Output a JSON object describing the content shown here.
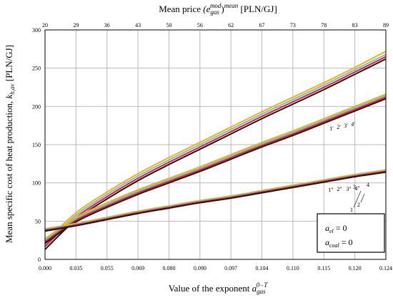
{
  "chart_data": {
    "type": "line",
    "top_axis": {
      "title": "Mean price (e_gas^mod)^mean [PLN/GJ]",
      "title_main": "Mean price ",
      "title_var": "(e",
      "title_sub": "gas",
      "title_sup": "mod",
      "title_var2": ")",
      "title_sup2": "mean",
      "title_unit": " [PLN/GJ]",
      "ticks": [
        "20",
        "29",
        "36",
        "43",
        "50",
        "56",
        "62",
        "67",
        "73",
        "78",
        "83",
        "89"
      ]
    },
    "x_axis": {
      "title_main": "Value of the exponent ",
      "title_var": "a",
      "title_sub": "gas",
      "title_sup": "0−T",
      "ticks": [
        "0.000",
        "0.035",
        "0.055",
        "0.069",
        "0.080",
        "0.090",
        "0.097",
        "0.104",
        "0.110",
        "0.115",
        "0.120",
        "0.124"
      ]
    },
    "y_axis": {
      "title_main": "Mean specific cost of heat production, ",
      "title_var": "k",
      "title_sub": "h,av",
      "title_unit": " [PLN/GJ]",
      "ticks": [
        "0",
        "50",
        "100",
        "150",
        "200",
        "250",
        "300"
      ],
      "ylim": [
        0,
        300
      ]
    },
    "grid": true,
    "x_index": [
      0,
      1,
      2,
      3,
      4,
      5,
      6,
      7,
      8,
      9,
      10,
      11
    ],
    "series": [
      {
        "label": "1",
        "color": "#1a1a1a",
        "values": [
          13,
          52,
          79,
          103,
          124,
          144,
          164,
          184,
          203,
          222,
          242,
          262
        ]
      },
      {
        "label": "2",
        "color": "#e0202a",
        "values": [
          17,
          55,
          82,
          106,
          127,
          147,
          167,
          187,
          206,
          225,
          245,
          265
        ]
      },
      {
        "label": "3",
        "color": "#7fb0e6",
        "values": [
          20,
          58,
          85,
          109,
          130,
          150,
          170,
          190,
          209,
          228,
          248,
          268
        ]
      },
      {
        "label": "4",
        "color": "#f2b400",
        "values": [
          23,
          61,
          88,
          112,
          133,
          153,
          173,
          193,
          212,
          231,
          251,
          272
        ]
      },
      {
        "label": "1'",
        "color": "#1a1a1a",
        "values": [
          21,
          49,
          68,
          85,
          100,
          115,
          131,
          147,
          162,
          178,
          194,
          210
        ]
      },
      {
        "label": "2'",
        "color": "#e0202a",
        "values": [
          23,
          51,
          70,
          87,
          102,
          117,
          133,
          149,
          164,
          180,
          196,
          212
        ]
      },
      {
        "label": "3'",
        "color": "#7fb0e6",
        "values": [
          25,
          53,
          72,
          89,
          104,
          119,
          135,
          151,
          166,
          182,
          198,
          214
        ]
      },
      {
        "label": "4'",
        "color": "#f2b400",
        "values": [
          27,
          55,
          74,
          91,
          106,
          121,
          137,
          153,
          168,
          184,
          200,
          216
        ]
      },
      {
        "label": "1\"",
        "color": "#1a1a1a",
        "values": [
          37,
          44,
          52,
          60,
          67,
          74,
          80,
          87,
          94,
          101,
          108,
          114
        ]
      },
      {
        "label": "2\"",
        "color": "#e0202a",
        "values": [
          38,
          45,
          53,
          61,
          68,
          75,
          81,
          88,
          95,
          102,
          109,
          115
        ]
      },
      {
        "label": "3\"",
        "color": "#7fb0e6",
        "values": [
          39,
          46,
          54,
          62,
          69,
          76,
          82,
          89,
          96,
          103,
          110,
          116
        ]
      },
      {
        "label": "4\"",
        "color": "#f2b400",
        "values": [
          40,
          47,
          55,
          63,
          70,
          77,
          83,
          90,
          97,
          104,
          111,
          117
        ]
      }
    ],
    "legend_box": {
      "line1_var": "a",
      "line1_sub": "el",
      "line1_rest": " = 0",
      "line2_var": "a",
      "line2_sub": "coal",
      "line2_rest": " = 0"
    }
  }
}
